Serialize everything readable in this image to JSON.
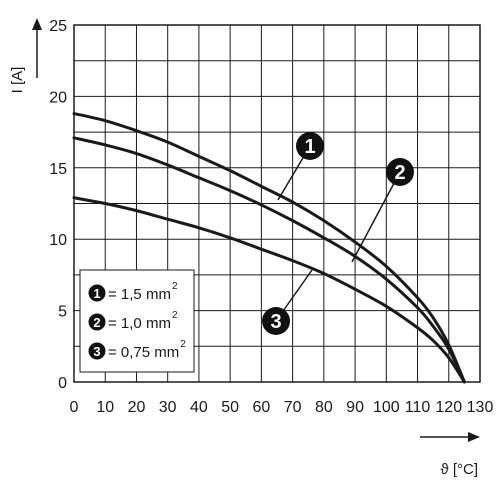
{
  "chart_data": {
    "type": "line",
    "xlabel": "ϑ [°C]",
    "ylabel": "I [A]",
    "xlim": [
      0,
      130
    ],
    "ylim": [
      0,
      25
    ],
    "x_ticks": [
      "0",
      "10",
      "20",
      "30",
      "40",
      "50",
      "60",
      "70",
      "80",
      "90",
      "100",
      "110",
      "120",
      "130"
    ],
    "y_ticks": [
      "0",
      "5",
      "10",
      "15",
      "20",
      "25"
    ],
    "grid": true,
    "legend_position": "bottom-left",
    "series": [
      {
        "id": "1",
        "name": "1,5 mm",
        "name_sup": "2",
        "points": [
          [
            0,
            18.8
          ],
          [
            10,
            18.3
          ],
          [
            20,
            17.6
          ],
          [
            30,
            16.8
          ],
          [
            40,
            15.8
          ],
          [
            50,
            14.8
          ],
          [
            60,
            13.7
          ],
          [
            70,
            12.6
          ],
          [
            80,
            11.3
          ],
          [
            90,
            9.8
          ],
          [
            100,
            8.1
          ],
          [
            110,
            5.9
          ],
          [
            115,
            4.5
          ],
          [
            120,
            2.6
          ],
          [
            125,
            0
          ]
        ]
      },
      {
        "id": "2",
        "name": "1,0 mm",
        "name_sup": "2",
        "points": [
          [
            0,
            17.1
          ],
          [
            10,
            16.6
          ],
          [
            20,
            16.0
          ],
          [
            30,
            15.2
          ],
          [
            40,
            14.3
          ],
          [
            50,
            13.4
          ],
          [
            60,
            12.4
          ],
          [
            70,
            11.3
          ],
          [
            80,
            10.1
          ],
          [
            90,
            8.8
          ],
          [
            100,
            7.2
          ],
          [
            110,
            5.2
          ],
          [
            115,
            3.9
          ],
          [
            120,
            2.3
          ],
          [
            125,
            0
          ]
        ]
      },
      {
        "id": "3",
        "name": "0,75 mm",
        "name_sup": "2",
        "points": [
          [
            0,
            12.9
          ],
          [
            10,
            12.5
          ],
          [
            20,
            12.0
          ],
          [
            30,
            11.4
          ],
          [
            40,
            10.8
          ],
          [
            50,
            10.1
          ],
          [
            60,
            9.3
          ],
          [
            70,
            8.5
          ],
          [
            80,
            7.6
          ],
          [
            90,
            6.5
          ],
          [
            100,
            5.3
          ],
          [
            110,
            3.8
          ],
          [
            115,
            2.9
          ],
          [
            120,
            1.7
          ],
          [
            125,
            0
          ]
        ]
      }
    ]
  }
}
